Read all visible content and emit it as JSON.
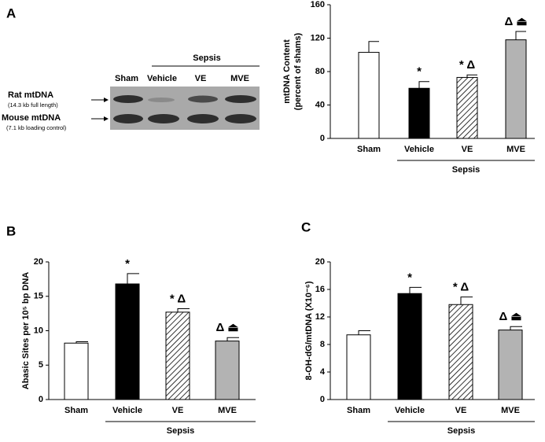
{
  "blot": {
    "panel": "A",
    "group_label": "Sepsis",
    "lanes": [
      "Sham",
      "Vehicle",
      "VE",
      "MVE"
    ],
    "rows": [
      {
        "label": "Rat mtDNA",
        "note": "(14.3 kb full length)"
      },
      {
        "label": "Mouse mtDNA",
        "note": "(7.1 kb loading control)"
      }
    ]
  },
  "chart_data": [
    {
      "type": "bar",
      "ylabel": [
        "mtDNA Content",
        "(percent of shams)"
      ],
      "categories": [
        "Sham",
        "Vehicle",
        "VE",
        "MVE"
      ],
      "group_label": "Sepsis",
      "values": [
        103,
        60,
        73,
        118
      ],
      "errors": [
        13,
        8,
        3,
        10
      ],
      "annotations": [
        null,
        "*",
        "* Δ",
        "Δ ⏏"
      ],
      "fills": [
        "#ffffff",
        "#000000",
        "hatched",
        "#b3b3b3"
      ],
      "ylim": [
        0,
        160
      ],
      "yticks": [
        0,
        40,
        80,
        120,
        160
      ]
    },
    {
      "type": "bar",
      "panel": "B",
      "ylabel": [
        "Abasic Sites per 10⁵ bp DNA"
      ],
      "categories": [
        "Sham",
        "Vehicle",
        "VE",
        "MVE"
      ],
      "group_label": "Sepsis",
      "values": [
        8.2,
        16.8,
        12.7,
        8.5
      ],
      "errors": [
        0.2,
        1.5,
        0.5,
        0.5
      ],
      "annotations": [
        null,
        "*",
        "* Δ",
        "Δ ⏏"
      ],
      "fills": [
        "#ffffff",
        "#000000",
        "hatched",
        "#b3b3b3"
      ],
      "ylim": [
        0,
        20
      ],
      "yticks": [
        0,
        5,
        10,
        15,
        20
      ]
    },
    {
      "type": "bar",
      "panel": "C",
      "ylabel": [
        "8-OH-dG/mtDNA (X10⁻⁶)"
      ],
      "categories": [
        "Sham",
        "Vehicle",
        "VE",
        "MVE"
      ],
      "group_label": "Sepsis",
      "values": [
        9.4,
        15.4,
        13.8,
        10.1
      ],
      "errors": [
        0.6,
        0.9,
        1.1,
        0.5
      ],
      "annotations": [
        null,
        "*",
        "* Δ",
        "Δ ⏏"
      ],
      "fills": [
        "#ffffff",
        "#000000",
        "hatched",
        "#b3b3b3"
      ],
      "ylim": [
        0,
        20
      ],
      "yticks": [
        0,
        4,
        8,
        12,
        16,
        20
      ]
    }
  ]
}
